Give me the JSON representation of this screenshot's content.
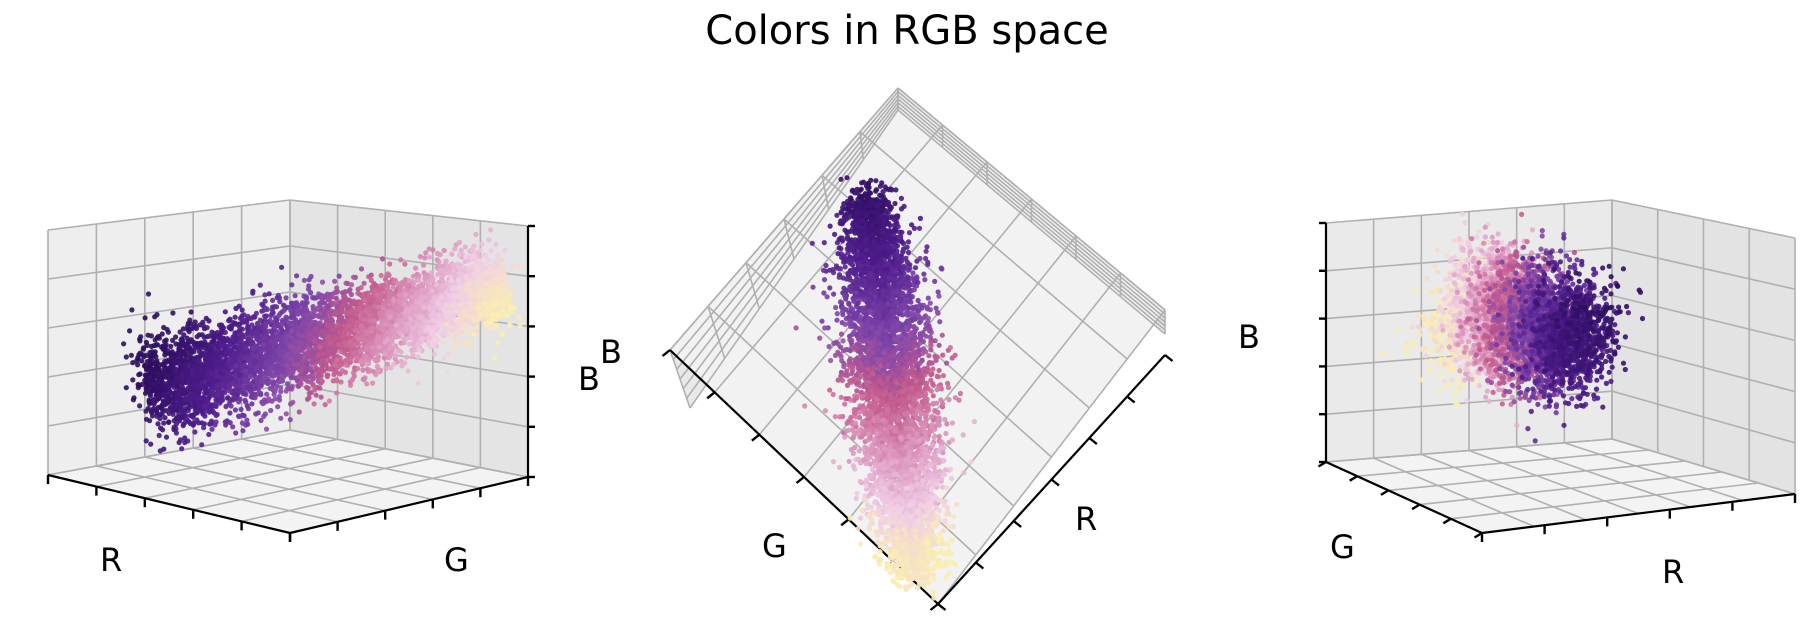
{
  "figure": {
    "title": "Colors in RGB space"
  },
  "chart_data": [
    {
      "type": "scatter3d",
      "title": "",
      "view": "side (elev ~5°, azim ~-50°)",
      "xlabel": "R",
      "ylabel": "G",
      "zlabel": "B",
      "xlim": [
        0,
        1
      ],
      "ylim": [
        0,
        1
      ],
      "zlim": [
        0,
        1
      ],
      "grid": true,
      "colormap": "magma (purple → pink → cream)",
      "cloud": "elongated diagonal cluster from dark purple (low R,G,B) to cream (high R,G,B)",
      "colors": {
        "dark": "#3b0f70",
        "mid": "#b73779",
        "light": "#fcfdbf",
        "pink": "#f7c4d8"
      }
    },
    {
      "type": "scatter3d",
      "title": "",
      "view": "top-down (elev ~70°, azim ~-45°)",
      "xlabel": "R",
      "ylabel": "G",
      "zlabel": "B",
      "xlim": [
        0,
        1
      ],
      "ylim": [
        0,
        1
      ],
      "zlim": [
        0,
        1
      ],
      "grid": true,
      "colormap": "magma (purple → pink → cream)",
      "cloud": "narrow vertical band, purple at top, white/pink at bottom",
      "colors": {
        "dark": "#3b0f70",
        "mid": "#b73779",
        "light": "#fcfdbf",
        "pink": "#f7c4d8"
      }
    },
    {
      "type": "scatter3d",
      "title": "",
      "view": "end-on (elev ~5°, azim ~40°)",
      "xlabel": "R",
      "ylabel": "G",
      "zlabel": "B",
      "xlim": [
        0,
        1
      ],
      "ylim": [
        0,
        1
      ],
      "zlim": [
        0,
        1
      ],
      "grid": true,
      "colormap": "magma (purple → pink → cream)",
      "cloud": "compact ellipsoid viewed along its long axis, cream on left, purple on right",
      "colors": {
        "dark": "#3b0f70",
        "mid": "#b73779",
        "light": "#fcfdbf",
        "pink": "#f7c4d8"
      }
    }
  ]
}
